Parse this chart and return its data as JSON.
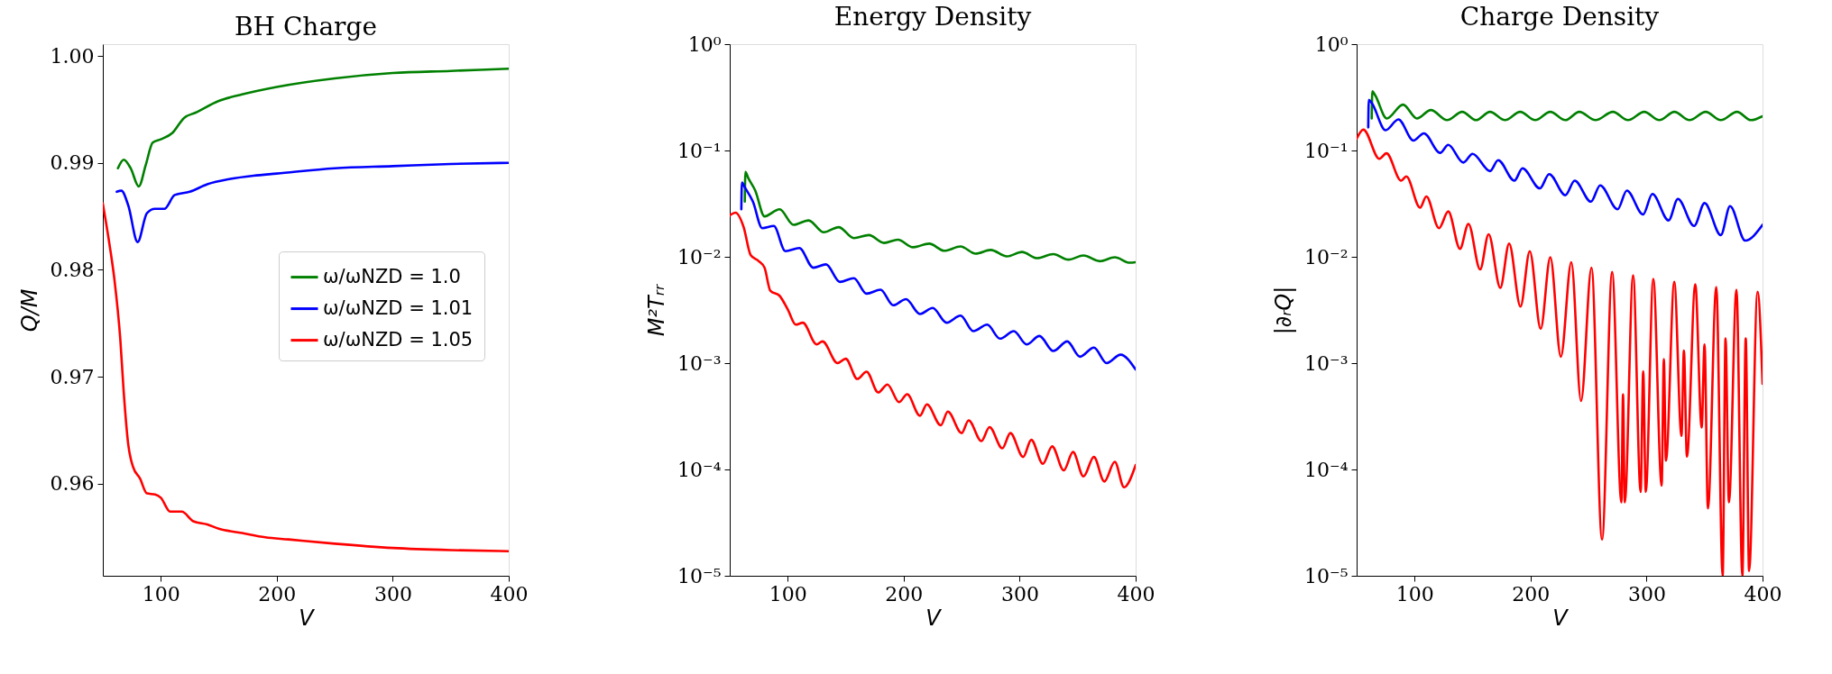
{
  "chart_data": [
    {
      "type": "line",
      "title": "BH Charge",
      "xlabel": "V",
      "ylabel": "Q/M",
      "xlim": [
        50,
        400
      ],
      "xticks": [
        100,
        200,
        300,
        400
      ],
      "ylim": [
        0.9514,
        1.0011
      ],
      "yticks": [
        0.96,
        0.97,
        0.98,
        0.99,
        {
          "value": 1.0,
          "label": "1.00"
        }
      ],
      "grid": false,
      "legend": "right",
      "series": [
        {
          "name": "ω/ωNZD = 1.0",
          "color": "#008000",
          "x": [
            63,
            68,
            74,
            81,
            87,
            93,
            100,
            110,
            120,
            130,
            150,
            170,
            200,
            250,
            300,
            350,
            400
          ],
          "values": [
            0.9895,
            0.9903,
            0.9895,
            0.9878,
            0.9898,
            0.9919,
            0.9922,
            0.9928,
            0.9942,
            0.9947,
            0.9958,
            0.9964,
            0.9971,
            0.9979,
            0.9984,
            0.9986,
            0.9988
          ]
        },
        {
          "name": "ω/ωNZD = 1.01",
          "color": "#0000ff",
          "x": [
            62,
            66,
            72,
            80,
            88,
            95,
            103,
            112,
            125,
            140,
            160,
            180,
            200,
            250,
            300,
            350,
            400
          ],
          "values": [
            0.9873,
            0.9874,
            0.986,
            0.9826,
            0.9853,
            0.9857,
            0.9857,
            0.987,
            0.9873,
            0.988,
            0.9885,
            0.9888,
            0.989,
            0.9895,
            0.9897,
            0.9899,
            0.99
          ]
        },
        {
          "name": "ω/ωNZD = 1.05",
          "color": "#ff0000",
          "x": [
            50,
            55,
            60,
            65,
            68,
            72,
            76,
            82,
            88,
            95,
            100,
            108,
            118,
            128,
            140,
            150,
            170,
            190,
            210,
            250,
            300,
            350,
            400
          ],
          "values": [
            0.9862,
            0.9829,
            0.9791,
            0.9736,
            0.9686,
            0.9636,
            0.9616,
            0.9605,
            0.9591,
            0.959,
            0.9587,
            0.9574,
            0.9574,
            0.9565,
            0.9562,
            0.9558,
            0.9554,
            0.955,
            0.9548,
            0.9544,
            0.954,
            0.9538,
            0.9537
          ]
        }
      ]
    },
    {
      "type": "line",
      "title": "Energy Density",
      "xlabel": "V",
      "ylabel": "M²Tᵣᵣ",
      "xlim": [
        50,
        400
      ],
      "xticks": [
        100,
        200,
        300,
        400
      ],
      "ylim": [
        1e-05,
        1
      ],
      "log": "y",
      "yticks": [
        {
          "value": 1e-05,
          "label": "10⁻⁵"
        },
        {
          "value": 0.0001,
          "label": "10⁻⁴"
        },
        {
          "value": 0.001,
          "label": "10⁻³"
        },
        {
          "value": 0.01,
          "label": "10⁻²"
        },
        {
          "value": 0.1,
          "label": "10⁻¹"
        },
        {
          "value": 1,
          "label": "10⁰"
        }
      ],
      "grid": false,
      "legend": false,
      "series": [
        {
          "color": "#008000",
          "x": [
            63,
            63.5,
            66,
            72,
            80,
            93,
            105,
            118,
            131,
            144,
            157,
            170,
            183,
            195,
            208,
            222,
            235,
            249,
            262,
            275,
            289,
            302,
            315,
            329,
            342,
            355,
            369,
            382,
            395,
            400
          ],
          "values": [
            0.033,
            0.063,
            0.055,
            0.042,
            0.024,
            0.028,
            0.02,
            0.022,
            0.017,
            0.019,
            0.015,
            0.016,
            0.0135,
            0.0145,
            0.0123,
            0.0133,
            0.0114,
            0.0125,
            0.0107,
            0.0116,
            0.0101,
            0.0111,
            0.0097,
            0.0106,
            0.0094,
            0.0103,
            0.0091,
            0.0099,
            0.0088,
            0.0089
          ]
        },
        {
          "color": "#0000ff",
          "x": [
            60,
            60.5,
            63,
            70,
            78,
            88,
            98,
            110,
            122,
            133,
            145,
            157,
            168,
            180,
            191,
            202,
            214,
            225,
            237,
            249,
            260,
            272,
            283,
            295,
            306,
            317,
            329,
            341,
            352,
            364,
            375,
            387,
            400
          ],
          "values": [
            0.028,
            0.05,
            0.045,
            0.033,
            0.0186,
            0.0195,
            0.0113,
            0.0121,
            0.0079,
            0.0085,
            0.0058,
            0.0063,
            0.0045,
            0.0049,
            0.0035,
            0.004,
            0.0029,
            0.0033,
            0.0024,
            0.0028,
            0.002,
            0.0023,
            0.0017,
            0.002,
            0.0015,
            0.0018,
            0.0013,
            0.0016,
            0.00115,
            0.0014,
            0.001,
            0.0012,
            0.00087
          ]
        },
        {
          "color": "#ff0000",
          "x": [
            50,
            55,
            62,
            68,
            75,
            80,
            85,
            93,
            100,
            107,
            113,
            125,
            130,
            143,
            150,
            160,
            168,
            178,
            186,
            196,
            203,
            214,
            220,
            232,
            238,
            250,
            256,
            267,
            274,
            285,
            292,
            303,
            310,
            320,
            328,
            338,
            346,
            355,
            364,
            373,
            382,
            390,
            400
          ],
          "values": [
            0.0245,
            0.026,
            0.019,
            0.0104,
            0.0091,
            0.0079,
            0.0048,
            0.0043,
            0.0032,
            0.0023,
            0.0024,
            0.0015,
            0.0016,
            0.001,
            0.0011,
            0.00071,
            0.00083,
            0.00053,
            0.00063,
            0.00043,
            0.00051,
            0.00032,
            0.00041,
            0.00026,
            0.00035,
            0.00022,
            0.00029,
            0.000185,
            0.00025,
            0.000158,
            0.00022,
            0.000131,
            0.00019,
            0.000113,
            0.000165,
            9.8e-05,
            0.000146,
            8.6e-05,
            0.000131,
            7.7e-05,
            0.000118,
            6.8e-05,
            0.00011
          ]
        }
      ]
    },
    {
      "type": "line",
      "title": "Charge Density",
      "xlabel": "V",
      "ylabel": "|∂ᵣQ|",
      "xlim": [
        50,
        400
      ],
      "xticks": [
        100,
        200,
        300,
        400
      ],
      "ylim": [
        1e-05,
        1
      ],
      "log": "y",
      "yticks": [
        {
          "value": 1e-05,
          "label": "10⁻⁵"
        },
        {
          "value": 0.0001,
          "label": "10⁻⁴"
        },
        {
          "value": 0.001,
          "label": "10⁻³"
        },
        {
          "value": 0.01,
          "label": "10⁻²"
        },
        {
          "value": 0.1,
          "label": "10⁻¹"
        },
        {
          "value": 1,
          "label": "10⁰"
        }
      ],
      "grid": false,
      "legend": false,
      "series": [
        {
          "color": "#008000",
          "x": [
            63,
            63.5,
            66,
            76,
            90,
            102,
            114,
            128,
            141,
            153,
            165,
            178,
            191,
            204,
            217,
            230,
            242,
            256,
            271,
            284,
            298,
            311,
            324,
            337,
            351,
            364,
            378,
            390,
            400
          ],
          "values": [
            0.2,
            0.36,
            0.33,
            0.2,
            0.27,
            0.2,
            0.24,
            0.193,
            0.231,
            0.193,
            0.231,
            0.193,
            0.231,
            0.193,
            0.231,
            0.193,
            0.231,
            0.193,
            0.231,
            0.193,
            0.231,
            0.193,
            0.231,
            0.193,
            0.231,
            0.193,
            0.231,
            0.193,
            0.21
          ]
        },
        {
          "color": "#0000ff",
          "x": [
            60,
            60.5,
            63,
            75,
            86,
            99,
            108,
            122,
            129,
            142,
            150,
            165,
            172,
            186,
            193,
            208,
            216,
            230,
            238,
            252,
            260,
            275,
            283,
            297,
            305,
            319,
            327,
            341,
            350,
            364,
            372,
            385,
            400
          ],
          "values": [
            0.165,
            0.3,
            0.28,
            0.155,
            0.196,
            0.124,
            0.145,
            0.095,
            0.113,
            0.077,
            0.093,
            0.064,
            0.081,
            0.052,
            0.068,
            0.044,
            0.06,
            0.038,
            0.052,
            0.033,
            0.047,
            0.028,
            0.042,
            0.025,
            0.039,
            0.022,
            0.035,
            0.0195,
            0.032,
            0.016,
            0.03,
            0.0142,
            0.02
          ]
        },
        {
          "color": "#ff0000",
          "x": [
            50,
            55.8,
            69.6,
            75.7,
            88.4,
            92.8,
            104.7,
            110.1,
            121,
            129,
            139.1,
            146.4,
            156.5,
            163.8,
            173.9,
            181.5,
            191.3,
            199.3,
            208.7,
            217,
            226.1,
            235.1,
            243.5,
            252.5,
            261.6,
            270.3,
            278.3,
            279.7,
            281.2,
            288.4,
            294.9,
            297.1,
            299.3,
            305.8,
            313,
            314.9,
            316.7,
            323.9,
            330.1,
            332.2,
            334.8,
            342,
            347.5,
            350,
            352.9,
            360.1,
            365.6,
            368.1,
            371,
            377.5,
            382.6,
            385.5,
            388.4,
            395.7,
            400
          ],
          "values": [
            0.129,
            0.157,
            0.0835,
            0.094,
            0.052,
            0.057,
            0.029,
            0.037,
            0.0186,
            0.0267,
            0.0119,
            0.0204,
            0.0076,
            0.0163,
            0.0051,
            0.0133,
            0.0034,
            0.0113,
            0.0021,
            0.0099,
            0.00115,
            0.0089,
            0.00044,
            0.0079,
            2.19e-05,
            0.0072,
            4.9e-05,
            0.00051,
            4.9e-05,
            0.0067,
            6.15e-05,
            0.00084,
            6.15e-05,
            0.0062,
            7.05e-05,
            0.00109,
            0.000121,
            0.0058,
            0.000207,
            0.00131,
            0.000132,
            0.0055,
            0.000248,
            0.0015,
            4.3e-05,
            0.0052,
            1e-05,
            0.00171,
            4.9e-05,
            0.0049,
            1e-05,
            0.00171,
            1.11e-05,
            0.0047,
            0.00064
          ]
        }
      ]
    }
  ]
}
